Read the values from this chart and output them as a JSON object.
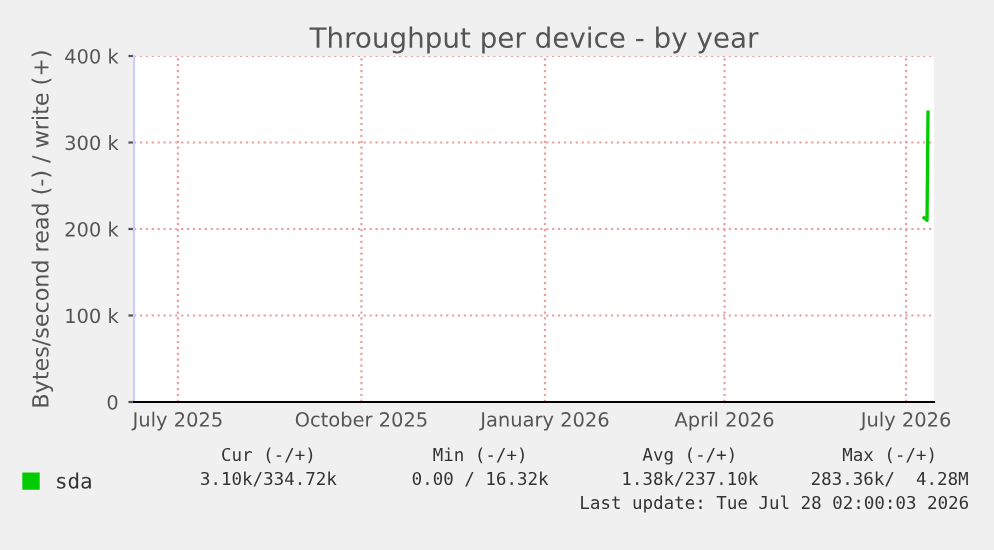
{
  "chart_data": {
    "type": "line",
    "title": "Throughput per device - by year",
    "ylabel": "Bytes/second read (-) / write (+)",
    "xlim": [
      "2025-06-23",
      "2026-07-29"
    ],
    "xticks": [
      {
        "value": "2025-07-15",
        "label": "July 2025"
      },
      {
        "value": "2025-10-15",
        "label": "October 2025"
      },
      {
        "value": "2026-01-15",
        "label": "January 2026"
      },
      {
        "value": "2026-04-15",
        "label": "April 2026"
      },
      {
        "value": "2026-07-15",
        "label": "July 2026"
      }
    ],
    "ylim": [
      0,
      400000
    ],
    "yticks": [
      {
        "value": 0,
        "label": "0"
      },
      {
        "value": 100000,
        "label": "100 k"
      },
      {
        "value": 200000,
        "label": "200 k"
      },
      {
        "value": 300000,
        "label": "300 k"
      },
      {
        "value": 400000,
        "label": "400 k"
      }
    ],
    "x": [
      "2026-07-24",
      "2026-07-25T12:00",
      "2026-07-26"
    ],
    "series": [
      {
        "name": "sda",
        "color": "#00cc00",
        "values": [
          213000,
          210000,
          335000
        ]
      }
    ],
    "grid": true,
    "legend": "bottom left",
    "marker": "none",
    "line_style": "solid",
    "annotations": [
      "Cur (-/+)",
      "Min (-/+)",
      "Avg (-/+)",
      "Max (-/+)",
      "3.10k/334.72k",
      "0.00 / 16.32k",
      "1.38k/237.10k",
      "283.36k/  4.28M",
      "Last update: Tue Jul 28 02:00:03 2026"
    ]
  }
}
